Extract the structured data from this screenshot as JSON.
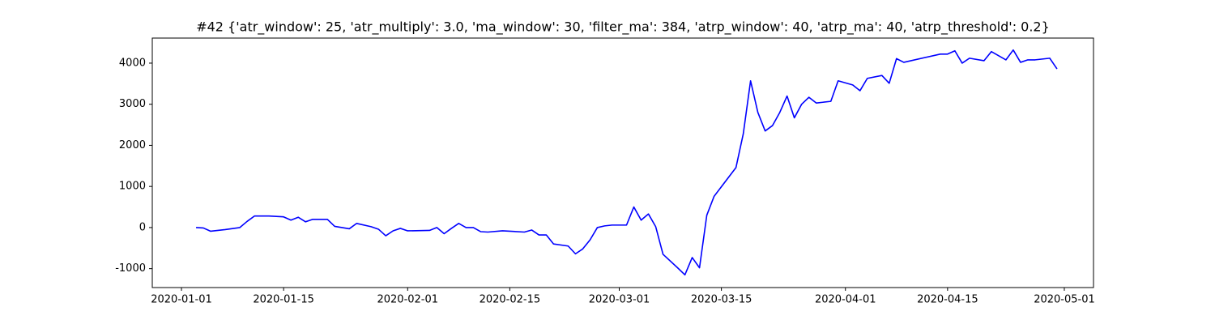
{
  "chart_data": {
    "type": "line",
    "title": "#42 {'atr_window': 25, 'atr_multiply': 3.0, 'ma_window': 30, 'filter_ma': 384, 'atrp_window': 40, 'atrp_ma': 40, 'atrp_threshold': 0.2}",
    "color": "#0000ff",
    "x": [
      "2020-01-03",
      "2020-01-04",
      "2020-01-05",
      "2020-01-07",
      "2020-01-09",
      "2020-01-10",
      "2020-01-11",
      "2020-01-13",
      "2020-01-15",
      "2020-01-16",
      "2020-01-17",
      "2020-01-18",
      "2020-01-19",
      "2020-01-21",
      "2020-01-22",
      "2020-01-24",
      "2020-01-25",
      "2020-01-27",
      "2020-01-28",
      "2020-01-29",
      "2020-01-30",
      "2020-01-31",
      "2020-02-01",
      "2020-02-04",
      "2020-02-05",
      "2020-02-06",
      "2020-02-07",
      "2020-02-08",
      "2020-02-09",
      "2020-02-10",
      "2020-02-11",
      "2020-02-12",
      "2020-02-14",
      "2020-02-17",
      "2020-02-18",
      "2020-02-19",
      "2020-02-20",
      "2020-02-21",
      "2020-02-23",
      "2020-02-24",
      "2020-02-25",
      "2020-02-26",
      "2020-02-27",
      "2020-02-28",
      "2020-02-29",
      "2020-03-02",
      "2020-03-03",
      "2020-03-04",
      "2020-03-05",
      "2020-03-06",
      "2020-03-07",
      "2020-03-09",
      "2020-03-10",
      "2020-03-11",
      "2020-03-12",
      "2020-03-13",
      "2020-03-14",
      "2020-03-17",
      "2020-03-18",
      "2020-03-19",
      "2020-03-20",
      "2020-03-21",
      "2020-03-22",
      "2020-03-23",
      "2020-03-24",
      "2020-03-25",
      "2020-03-26",
      "2020-03-27",
      "2020-03-28",
      "2020-03-30",
      "2020-03-31",
      "2020-04-02",
      "2020-04-03",
      "2020-04-04",
      "2020-04-06",
      "2020-04-07",
      "2020-04-08",
      "2020-04-09",
      "2020-04-14",
      "2020-04-15",
      "2020-04-16",
      "2020-04-17",
      "2020-04-18",
      "2020-04-20",
      "2020-04-21",
      "2020-04-23",
      "2020-04-24",
      "2020-04-25",
      "2020-04-26",
      "2020-04-27",
      "2020-04-29",
      "2020-04-30"
    ],
    "values": [
      0,
      -10,
      -90,
      -50,
      0,
      150,
      280,
      280,
      260,
      180,
      250,
      140,
      200,
      200,
      30,
      -30,
      100,
      20,
      -40,
      -200,
      -80,
      -20,
      -80,
      -70,
      0,
      -150,
      -20,
      100,
      0,
      0,
      -100,
      -110,
      -80,
      -110,
      -60,
      -180,
      -180,
      -400,
      -450,
      -640,
      -520,
      -300,
      0,
      40,
      60,
      60,
      500,
      180,
      330,
      20,
      -650,
      -980,
      -1150,
      -730,
      -980,
      300,
      760,
      1460,
      2280,
      3570,
      2800,
      2350,
      2480,
      2800,
      3200,
      2670,
      3000,
      3170,
      3030,
      3070,
      3570,
      3470,
      3330,
      3630,
      3700,
      3510,
      4110,
      4020,
      4220,
      4220,
      4300,
      4000,
      4120,
      4060,
      4280,
      4080,
      4320,
      4020,
      4080,
      4080,
      4120,
      3860
    ],
    "xlim": [
      "2019-12-28",
      "2020-05-05"
    ],
    "xticks": [
      "2020-01-01",
      "2020-01-15",
      "2020-02-01",
      "2020-02-15",
      "2020-03-01",
      "2020-03-15",
      "2020-04-01",
      "2020-04-15",
      "2020-05-01"
    ],
    "ylim": [
      -1460,
      4610
    ],
    "yticks": [
      -1000,
      0,
      1000,
      2000,
      3000,
      4000
    ]
  }
}
